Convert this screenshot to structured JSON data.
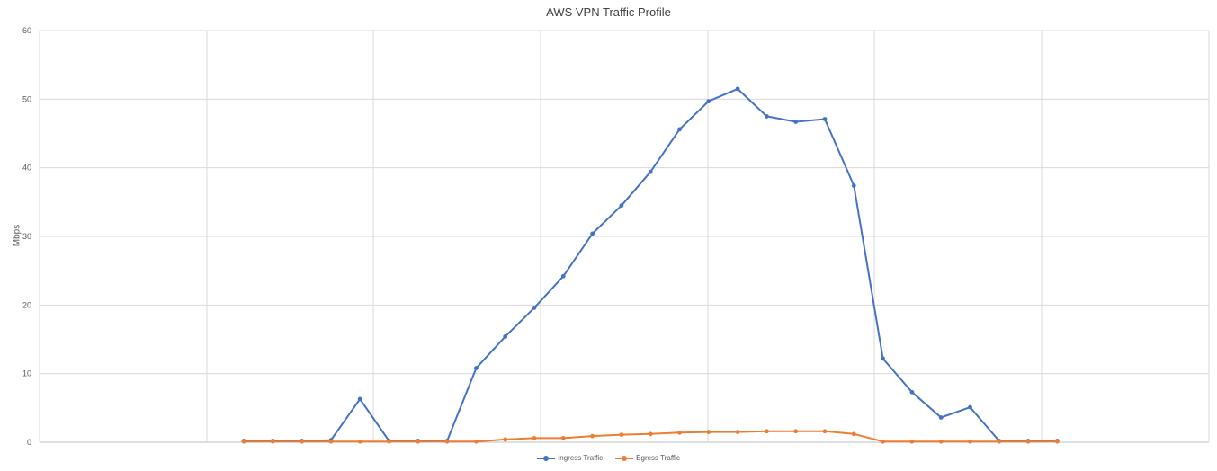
{
  "chart_data": {
    "type": "line",
    "title": "AWS VPN Traffic Profile",
    "xlabel": "",
    "ylabel": "Mbps",
    "ylim": [
      0,
      60
    ],
    "yticks": [
      0,
      10,
      20,
      30,
      40,
      50,
      60
    ],
    "grid": true,
    "legend_position": "bottom",
    "x": [
      1,
      2,
      3,
      4,
      5,
      6,
      7,
      8,
      9,
      10,
      11,
      12,
      13,
      14,
      15,
      16,
      17,
      18,
      19,
      20,
      21,
      22,
      23,
      24,
      25,
      26,
      27,
      28,
      29
    ],
    "series": [
      {
        "name": "Ingress Traffic",
        "color": "#4472C4",
        "values": [
          0.2,
          0.2,
          0.2,
          0.3,
          6.3,
          0.2,
          0.2,
          0.2,
          10.8,
          15.4,
          19.6,
          24.2,
          30.4,
          34.5,
          39.4,
          45.6,
          49.7,
          51.5,
          47.5,
          46.7,
          47.1,
          37.4,
          12.2,
          7.3,
          3.6,
          5.1,
          0.2,
          0.2,
          0.2
        ]
      },
      {
        "name": "Egress Traffic",
        "color": "#ED7D31",
        "values": [
          0.1,
          0.1,
          0.1,
          0.1,
          0.1,
          0.1,
          0.1,
          0.1,
          0.1,
          0.4,
          0.6,
          0.6,
          0.9,
          1.1,
          1.2,
          1.4,
          1.5,
          1.5,
          1.6,
          1.6,
          1.6,
          1.2,
          0.1,
          0.1,
          0.1,
          0.1,
          0.1,
          0.1,
          0.1
        ]
      }
    ]
  }
}
